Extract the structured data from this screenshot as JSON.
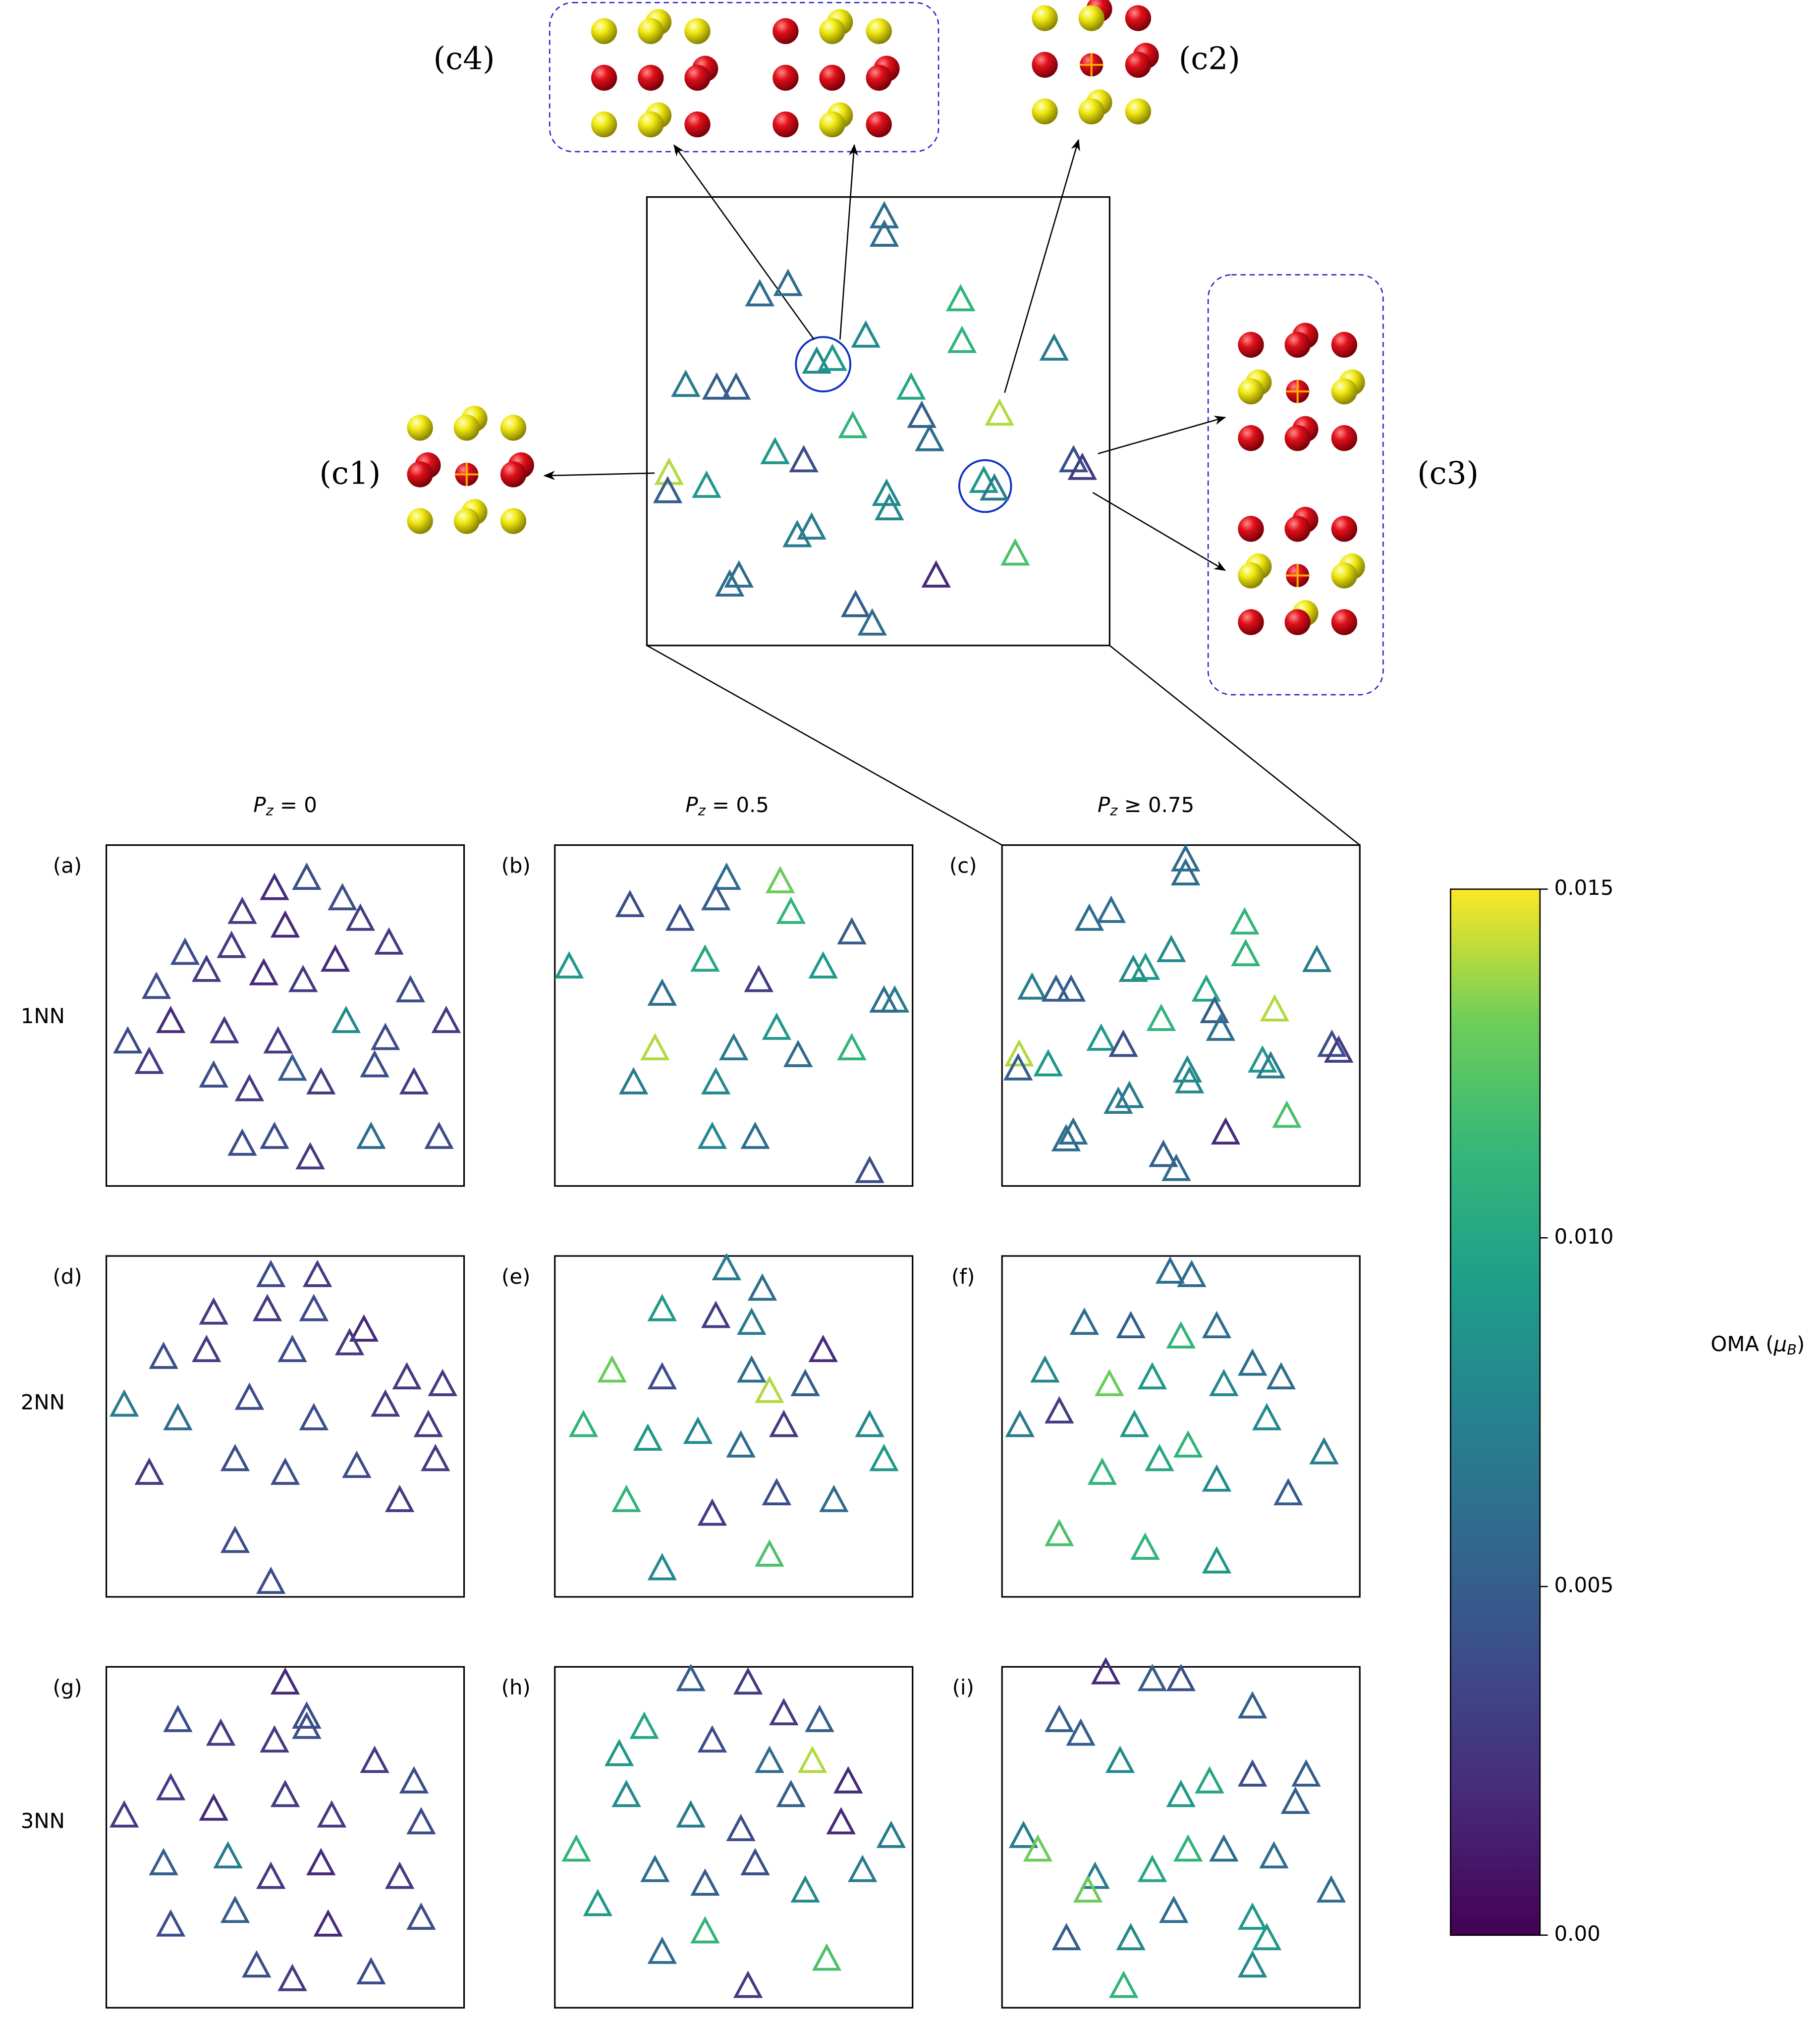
{
  "column_titles": [
    "P_z = 0",
    "P_z = 0.5",
    "P_z ≥ 0.75"
  ],
  "row_labels": [
    "1NN",
    "2NN",
    "3NN"
  ],
  "insets": [
    "(c1)",
    "(c2)",
    "(c3)",
    "(c4)"
  ],
  "colorbar": {
    "label": "OMA (μ_B)",
    "colormap": "viridis",
    "clim": [
      0,
      0.015
    ],
    "ticks": [
      {
        "value": 0,
        "label": "0.00"
      },
      0.005,
      {
        "value": 0.01,
        "label": "0.010"
      },
      0.015
    ]
  },
  "chart_data": [
    {
      "type": "scatter",
      "label": "(a)",
      "marker": "triangle",
      "xlim": [
        0,
        100
      ],
      "ylim": [
        0,
        100
      ],
      "x": [
        56,
        47,
        38,
        66,
        71,
        50,
        35,
        22,
        14,
        28,
        44,
        55,
        64,
        79,
        85,
        95,
        78,
        67,
        48,
        33,
        18,
        6,
        12,
        30,
        40,
        52,
        60,
        75,
        86,
        38,
        47,
        57,
        74,
        93
      ],
      "y": [
        90,
        87,
        80,
        84,
        78,
        76,
        70,
        68,
        58,
        63,
        62,
        60,
        66,
        71,
        57,
        48,
        43,
        48,
        42,
        45,
        48,
        42,
        36,
        32,
        28,
        34,
        30,
        35,
        30,
        12,
        14,
        8,
        14,
        14
      ],
      "c": [
        0.004,
        0.002,
        0.003,
        0.004,
        0.003,
        0.002,
        0.003,
        0.004,
        0.004,
        0.003,
        0.002,
        0.003,
        0.002,
        0.003,
        0.004,
        0.003,
        0.004,
        0.008,
        0.003,
        0.003,
        0.002,
        0.004,
        0.003,
        0.004,
        0.003,
        0.005,
        0.003,
        0.004,
        0.003,
        0.004,
        0.004,
        0.003,
        0.006,
        0.004
      ]
    },
    {
      "type": "scatter",
      "label": "(b)",
      "marker": "triangle",
      "xlim": [
        0,
        100
      ],
      "ylim": [
        0,
        100
      ],
      "x": [
        48,
        63,
        45,
        21,
        35,
        66,
        83,
        95,
        4,
        30,
        42,
        57,
        75,
        92,
        28,
        50,
        62,
        83,
        22,
        45,
        68,
        44,
        56,
        88
      ],
      "y": [
        90,
        89,
        84,
        82,
        78,
        80,
        74,
        54,
        64,
        56,
        66,
        60,
        64,
        54,
        40,
        40,
        46,
        40,
        30,
        30,
        38,
        14,
        14,
        4
      ],
      "c": [
        0.006,
        0.013,
        0.005,
        0.004,
        0.004,
        0.011,
        0.005,
        0.007,
        0.009,
        0.006,
        0.01,
        0.003,
        0.009,
        0.006,
        0.014,
        0.007,
        0.009,
        0.011,
        0.007,
        0.008,
        0.006,
        0.008,
        0.006,
        0.004
      ]
    },
    {
      "type": "scatter",
      "label": "(c)",
      "marker": "triangle",
      "xlim": [
        0,
        100
      ],
      "ylim": [
        0,
        100
      ],
      "x": [
        51.3,
        51.3,
        24.4,
        30.5,
        67.8,
        68.1,
        47.3,
        36.7,
        40.1,
        88.0,
        8.4,
        15.1,
        19.3,
        57.1,
        59.4,
        76.2,
        44.5,
        61.1,
        27.7,
        33.9,
        92.2,
        94.1,
        4.8,
        4.5,
        12.9,
        51.8,
        52.4,
        72.8,
        75.1,
        35.6,
        32.5,
        79.6,
        62.5,
        19.9,
        17.9,
        45.1,
        48.7
      ],
      "y": [
        95.4,
        91.3,
        78.0,
        80.3,
        76.9,
        67.6,
        68.8,
        63.0,
        63.6,
        65.9,
        57.8,
        57.2,
        57.2,
        57.2,
        50.9,
        51.4,
        48.6,
        45.7,
        42.8,
        41.0,
        41.0,
        39.3,
        38.2,
        34.1,
        35.3,
        33.5,
        30.3,
        36.4,
        34.7,
        26.0,
        24.3,
        20.2,
        15.3,
        15.3,
        13.3,
        8.7,
        4.6
      ],
      "c": [
        0.006,
        0.006,
        0.006,
        0.006,
        0.011,
        0.011,
        0.008,
        0.008,
        0.009,
        0.007,
        0.007,
        0.005,
        0.005,
        0.01,
        0.005,
        0.014,
        0.011,
        0.006,
        0.009,
        0.004,
        0.004,
        0.003,
        0.014,
        0.005,
        0.009,
        0.008,
        0.008,
        0.009,
        0.007,
        0.007,
        0.007,
        0.012,
        0.002,
        0.006,
        0.006,
        0.005,
        0.006
      ]
    },
    {
      "type": "scatter",
      "label": "(d)",
      "marker": "triangle",
      "xlim": [
        0,
        100
      ],
      "ylim": [
        0,
        100
      ],
      "x": [
        46,
        59,
        30,
        45,
        58,
        72,
        16,
        28,
        52,
        68,
        84,
        94,
        5,
        20,
        40,
        58,
        78,
        90,
        12,
        36,
        50,
        70,
        82,
        92,
        36,
        46
      ],
      "y": [
        94,
        94,
        83,
        84,
        84,
        78,
        70,
        72,
        72,
        74,
        64,
        62,
        56,
        52,
        58,
        52,
        56,
        50,
        36,
        40,
        36,
        38,
        28,
        40,
        16,
        4
      ],
      "c": [
        0.004,
        0.003,
        0.003,
        0.003,
        0.004,
        0.002,
        0.004,
        0.003,
        0.004,
        0.003,
        0.003,
        0.003,
        0.007,
        0.006,
        0.004,
        0.004,
        0.003,
        0.003,
        0.003,
        0.004,
        0.004,
        0.004,
        0.003,
        0.003,
        0.004,
        0.004
      ]
    },
    {
      "type": "scatter",
      "label": "(e)",
      "marker": "triangle",
      "xlim": [
        0,
        100
      ],
      "ylim": [
        0,
        100
      ],
      "x": [
        48,
        58,
        30,
        45,
        55,
        75,
        16,
        30,
        55,
        60,
        70,
        88,
        8,
        26,
        40,
        52,
        64,
        92,
        20,
        44,
        62,
        78,
        30,
        60
      ],
      "y": [
        96,
        90,
        84,
        82,
        80,
        72,
        66,
        64,
        66,
        60,
        62,
        50,
        50,
        46,
        48,
        44,
        50,
        40,
        28,
        24,
        30,
        28,
        8,
        12
      ],
      "c": [
        0.007,
        0.006,
        0.009,
        0.003,
        0.007,
        0.002,
        0.013,
        0.004,
        0.006,
        0.014,
        0.005,
        0.008,
        0.011,
        0.009,
        0.008,
        0.006,
        0.003,
        0.009,
        0.011,
        0.003,
        0.004,
        0.006,
        0.008,
        0.012
      ]
    },
    {
      "type": "scatter",
      "label": "(f)",
      "marker": "triangle",
      "xlim": [
        0,
        100
      ],
      "ylim": [
        0,
        100
      ],
      "x": [
        47,
        53,
        23,
        36,
        50,
        60,
        70,
        12,
        30,
        42,
        62,
        78,
        5,
        16,
        37,
        52,
        74,
        90,
        28,
        44,
        60,
        80,
        16,
        40,
        60
      ],
      "y": [
        95,
        94,
        80,
        79,
        76,
        79,
        68,
        66,
        62,
        64,
        62,
        64,
        50,
        54,
        50,
        44,
        52,
        42,
        36,
        40,
        34,
        30,
        18,
        14,
        10
      ],
      "c": [
        0.006,
        0.006,
        0.006,
        0.005,
        0.011,
        0.006,
        0.006,
        0.008,
        0.013,
        0.009,
        0.008,
        0.006,
        0.007,
        0.003,
        0.009,
        0.011,
        0.008,
        0.007,
        0.011,
        0.01,
        0.008,
        0.005,
        0.012,
        0.011,
        0.009
      ]
    },
    {
      "type": "scatter",
      "label": "(g)",
      "marker": "triangle",
      "xlim": [
        0,
        100
      ],
      "ylim": [
        0,
        100
      ],
      "x": [
        50,
        56,
        20,
        32,
        47,
        56,
        75,
        86,
        5,
        18,
        30,
        50,
        63,
        88,
        16,
        34,
        46,
        60,
        82,
        18,
        36,
        62,
        88,
        42,
        52,
        74
      ],
      "y": [
        95,
        85,
        84,
        80,
        78,
        82,
        72,
        66,
        56,
        64,
        58,
        62,
        56,
        54,
        42,
        44,
        38,
        42,
        38,
        24,
        28,
        24,
        26,
        12,
        8,
        10
      ],
      "c": [
        0.002,
        0.004,
        0.004,
        0.003,
        0.003,
        0.004,
        0.003,
        0.004,
        0.003,
        0.003,
        0.002,
        0.003,
        0.003,
        0.004,
        0.005,
        0.007,
        0.003,
        0.002,
        0.003,
        0.004,
        0.005,
        0.002,
        0.004,
        0.004,
        0.003,
        0.004
      ]
    },
    {
      "type": "scatter",
      "label": "(h)",
      "marker": "triangle",
      "xlim": [
        0,
        100
      ],
      "ylim": [
        0,
        100
      ],
      "x": [
        38,
        54,
        64,
        74,
        18,
        25,
        44,
        60,
        72,
        82,
        6,
        20,
        38,
        52,
        66,
        80,
        94,
        12,
        28,
        42,
        56,
        70,
        86,
        30,
        42,
        54,
        76
      ],
      "y": [
        96,
        95,
        86,
        84,
        74,
        82,
        78,
        72,
        72,
        66,
        46,
        62,
        56,
        52,
        62,
        54,
        50,
        30,
        40,
        36,
        42,
        34,
        40,
        16,
        22,
        6,
        14
      ],
      "c": [
        0.005,
        0.003,
        0.003,
        0.005,
        0.009,
        0.01,
        0.004,
        0.006,
        0.014,
        0.002,
        0.011,
        0.008,
        0.007,
        0.004,
        0.005,
        0.002,
        0.007,
        0.009,
        0.006,
        0.005,
        0.004,
        0.008,
        0.007,
        0.006,
        0.011,
        0.003,
        0.012
      ]
    },
    {
      "type": "scatter",
      "label": "(i)",
      "marker": "triangle",
      "xlim": [
        0,
        100
      ],
      "ylim": [
        0,
        100
      ],
      "x": [
        29,
        42,
        50,
        70,
        16,
        22,
        33,
        58,
        50,
        70,
        82,
        85,
        6,
        10,
        26,
        42,
        52,
        62,
        76,
        92,
        24,
        36,
        48,
        70,
        74,
        18,
        34,
        70
      ],
      "y": [
        98,
        96,
        96,
        88,
        84,
        80,
        72,
        66,
        62,
        68,
        60,
        68,
        50,
        46,
        38,
        40,
        46,
        46,
        44,
        34,
        34,
        20,
        28,
        26,
        20,
        20,
        6,
        12
      ],
      "c": [
        0.002,
        0.005,
        0.004,
        0.005,
        0.005,
        0.005,
        0.008,
        0.01,
        0.009,
        0.004,
        0.005,
        0.005,
        0.007,
        0.013,
        0.007,
        0.01,
        0.011,
        0.006,
        0.006,
        0.006,
        0.013,
        0.008,
        0.006,
        0.009,
        0.009,
        0.005,
        0.011,
        0.008
      ]
    }
  ]
}
